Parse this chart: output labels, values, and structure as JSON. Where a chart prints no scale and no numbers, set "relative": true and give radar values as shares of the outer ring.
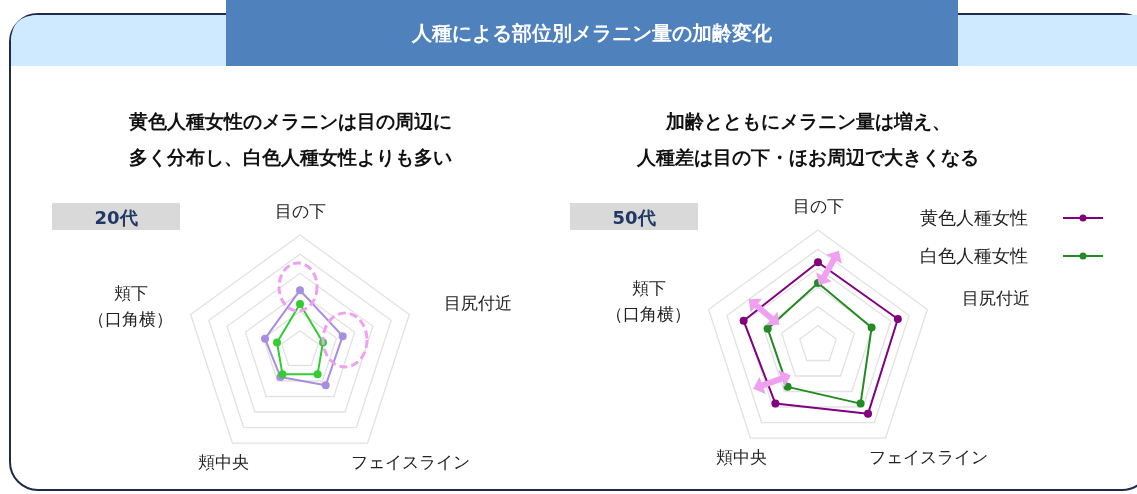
{
  "chart_data": [
    {
      "type": "radar",
      "title": "人種による部位別メラニン量の加齢変化",
      "subtitle": "黄色人種女性のメラニンは目の周辺に多く分布し、白色人種女性よりも多い",
      "annotations": [
        "20代"
      ],
      "relative": true,
      "grid": true,
      "marker": "circle",
      "categories": [
        "目の下",
        "目尻付近",
        "フェイスライン",
        "頬中央",
        "頬下（口角横）"
      ],
      "series": [
        {
          "color": "#a98ee0",
          "values": [
            0.52,
            0.39,
            0.38,
            0.29,
            0.32
          ]
        },
        {
          "color": "#33cc33",
          "values": [
            0.4,
            0.21,
            0.26,
            0.26,
            0.21
          ]
        }
      ]
    },
    {
      "type": "radar",
      "subtitle": "加齢とともにメラニン量は増え、人種差は目の下・ほお周辺で大きくなる",
      "annotations": [
        "50代"
      ],
      "relative": true,
      "grid": true,
      "marker": "circle",
      "legend": "top right",
      "categories": [
        "目の下",
        "目尻付近",
        "フェイスライン",
        "頬中央",
        "頬下（口角横）"
      ],
      "series": [
        {
          "name": "黄色人種女性",
          "color": "#800080",
          "values": [
            0.72,
            0.73,
            0.74,
            0.63,
            0.68
          ]
        },
        {
          "name": "白色人種女性",
          "color": "#228b22",
          "values": [
            0.54,
            0.49,
            0.63,
            0.45,
            0.46
          ]
        }
      ]
    }
  ]
}
